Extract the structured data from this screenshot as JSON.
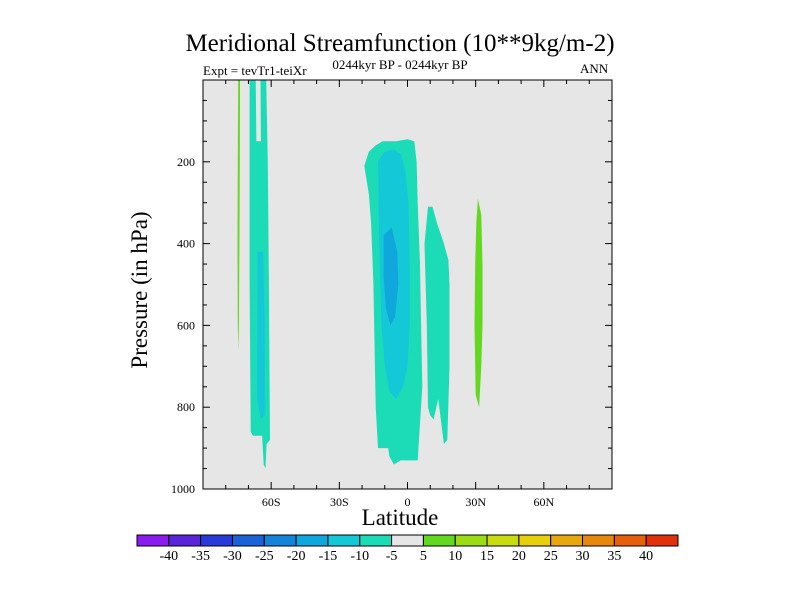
{
  "chart_data": {
    "type": "contour",
    "title": "Meridional Streamfunction (10**9kg/m-2)",
    "subtitle_left": "Expt = tevTr1-teiXr",
    "subtitle_center": "0244kyr BP - 0244kyr BP",
    "subtitle_right": "ANN",
    "xlabel": "Latitude",
    "ylabel": "Pressure (in hPa)",
    "xlim": [
      -90,
      90
    ],
    "ylim": [
      1000,
      0
    ],
    "x_ticks": [
      {
        "value": -60,
        "label": "60S"
      },
      {
        "value": -30,
        "label": "30S"
      },
      {
        "value": 0,
        "label": "0"
      },
      {
        "value": 30,
        "label": "30N"
      },
      {
        "value": 60,
        "label": "60N"
      }
    ],
    "y_ticks": [
      {
        "value": 200,
        "label": "200"
      },
      {
        "value": 400,
        "label": "400"
      },
      {
        "value": 600,
        "label": "600"
      },
      {
        "value": 800,
        "label": "800"
      },
      {
        "value": 1000,
        "label": "1000"
      }
    ],
    "colorbar": {
      "levels": [
        "-40",
        "-35",
        "-30",
        "-25",
        "-20",
        "-15",
        "-10",
        "-5",
        "5",
        "10",
        "15",
        "20",
        "25",
        "30",
        "35",
        "40"
      ],
      "colors": [
        "#8a1cf0",
        "#5a24d8",
        "#2a3ad8",
        "#1a62d6",
        "#1484d8",
        "#10a8dc",
        "#14c8d8",
        "#1cdcb8",
        "#e6e6e6",
        "#64d820",
        "#9cdc14",
        "#c8dc10",
        "#e6d00c",
        "#e6a80c",
        "#e6880c",
        "#e6600c",
        "#e0300c"
      ],
      "neutral_color": "#e6e6e6"
    },
    "regions": [
      {
        "name": "sh-narrow-positive",
        "level": "5 to 10",
        "color": "#64d820",
        "points": [
          [
            -74.5,
            0
          ],
          [
            -73.7,
            0
          ],
          [
            -73.8,
            200
          ],
          [
            -74,
            400
          ],
          [
            -74.2,
            600
          ],
          [
            -74.4,
            660
          ],
          [
            -74.7,
            600
          ],
          [
            -74.8,
            400
          ],
          [
            -74.7,
            200
          ]
        ]
      },
      {
        "name": "sh-negative-column",
        "level": "-5 to -10",
        "color": "#1cdcb8",
        "points": [
          [
            -69.5,
            0
          ],
          [
            -66.8,
            0
          ],
          [
            -66.5,
            150
          ],
          [
            -64.5,
            150
          ],
          [
            -64.7,
            0
          ],
          [
            -62.2,
            0
          ],
          [
            -61.5,
            200
          ],
          [
            -61,
            500
          ],
          [
            -60.5,
            880
          ],
          [
            -62,
            890
          ],
          [
            -62.5,
            950
          ],
          [
            -63.3,
            940
          ],
          [
            -64,
            870
          ],
          [
            -66,
            870
          ],
          [
            -68,
            870
          ],
          [
            -69,
            860
          ],
          [
            -69.5,
            500
          ]
        ]
      },
      {
        "name": "sh-negative-core",
        "level": "-10 to -15",
        "color": "#14c8d8",
        "points": [
          [
            -66,
            420
          ],
          [
            -63.5,
            420
          ],
          [
            -62.8,
            600
          ],
          [
            -62.8,
            820
          ],
          [
            -64.5,
            830
          ],
          [
            -66.2,
            780
          ]
        ]
      },
      {
        "name": "tropical-negative-cell",
        "level": "-5 to -10",
        "color": "#1cdcb8",
        "points": [
          [
            -19,
            210
          ],
          [
            -17,
            175
          ],
          [
            -14,
            160
          ],
          [
            -11,
            150
          ],
          [
            -5,
            150
          ],
          [
            0,
            145
          ],
          [
            3,
            150
          ],
          [
            4,
            200
          ],
          [
            4.5,
            300
          ],
          [
            5.5,
            450
          ],
          [
            6,
            600
          ],
          [
            6.5,
            750
          ],
          [
            4.5,
            930
          ],
          [
            -3,
            930
          ],
          [
            -6,
            940
          ],
          [
            -8,
            920
          ],
          [
            -8.5,
            900
          ],
          [
            -13,
            900
          ],
          [
            -14,
            800
          ],
          [
            -15,
            500
          ],
          [
            -16,
            350
          ],
          [
            -17,
            280
          ]
        ]
      },
      {
        "name": "tropical-negative-inner",
        "level": "-10 to -15",
        "color": "#14c8d8",
        "points": [
          [
            -13,
            200
          ],
          [
            -10,
            175
          ],
          [
            -6,
            170
          ],
          [
            -3,
            180
          ],
          [
            -1,
            220
          ],
          [
            0.5,
            300
          ],
          [
            1,
            450
          ],
          [
            1,
            600
          ],
          [
            0,
            700
          ],
          [
            -2,
            750
          ],
          [
            -5,
            780
          ],
          [
            -8,
            760
          ],
          [
            -10,
            700
          ],
          [
            -11.5,
            600
          ],
          [
            -12.5,
            400
          ]
        ]
      },
      {
        "name": "tropical-negative-core",
        "level": "-15 to -20",
        "color": "#10a8dc",
        "points": [
          [
            -10.5,
            380
          ],
          [
            -7,
            360
          ],
          [
            -4.5,
            420
          ],
          [
            -4,
            500
          ],
          [
            -5.5,
            580
          ],
          [
            -7.5,
            600
          ],
          [
            -9.5,
            560
          ],
          [
            -10.5,
            480
          ]
        ]
      },
      {
        "name": "nh-subtropical-negative",
        "level": "-5 to -10",
        "color": "#1cdcb8",
        "points": [
          [
            7.5,
            400
          ],
          [
            9,
            310
          ],
          [
            11,
            310
          ],
          [
            13,
            350
          ],
          [
            16,
            400
          ],
          [
            18,
            440
          ],
          [
            18.5,
            500
          ],
          [
            18.5,
            700
          ],
          [
            17.5,
            880
          ],
          [
            16,
            890
          ],
          [
            14,
            800
          ],
          [
            13.5,
            780
          ],
          [
            11.5,
            830
          ],
          [
            10,
            820
          ],
          [
            9,
            800
          ],
          [
            8.5,
            600
          ]
        ]
      },
      {
        "name": "nh-positive-cell",
        "level": "5 to 10",
        "color": "#64d820",
        "points": [
          [
            31,
            290
          ],
          [
            32.5,
            330
          ],
          [
            33,
            450
          ],
          [
            33,
            600
          ],
          [
            32.5,
            700
          ],
          [
            31.5,
            800
          ],
          [
            30,
            770
          ],
          [
            29.5,
            600
          ],
          [
            29.8,
            450
          ],
          [
            30.3,
            350
          ]
        ]
      }
    ]
  }
}
